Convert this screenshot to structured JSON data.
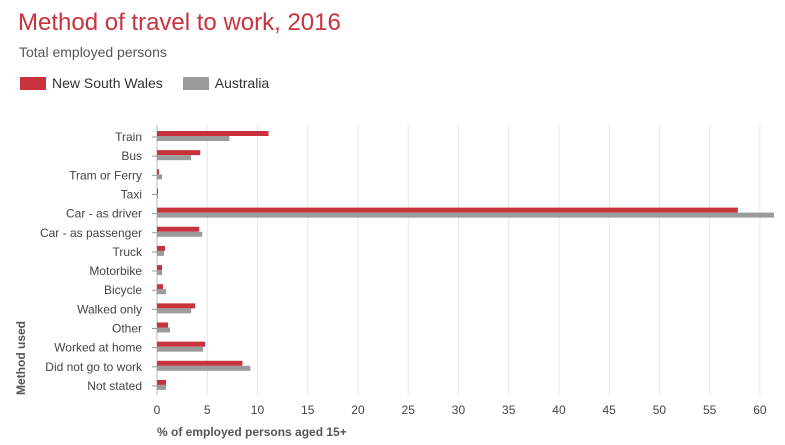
{
  "header": {
    "title": "Method of travel to work, 2016",
    "subtitle": "Total employed persons"
  },
  "legend": {
    "items": [
      {
        "label": "New South Wales",
        "color": "#c8323c"
      },
      {
        "label": "Australia",
        "color": "#9b9b9b"
      }
    ]
  },
  "chart_data": {
    "type": "bar",
    "orientation": "horizontal",
    "title": "Method of travel to work, 2016",
    "subtitle": "Total employed persons",
    "xlabel": "% of employed persons aged 15+",
    "ylabel": "Method used",
    "xlim": [
      0,
      61.5
    ],
    "xticks": [
      0,
      5,
      10,
      15,
      20,
      25,
      30,
      35,
      40,
      45,
      50,
      55,
      60
    ],
    "grid": "vertical",
    "legend_position": "top-left",
    "categories": [
      "Train",
      "Bus",
      "Tram or Ferry",
      "Taxi",
      "Car - as driver",
      "Car - as passenger",
      "Truck",
      "Motorbike",
      "Bicycle",
      "Walked only",
      "Other",
      "Worked at home",
      "Did not go to work",
      "Not stated"
    ],
    "series": [
      {
        "name": "New South Wales",
        "color": "#c8323c",
        "values": [
          11.1,
          4.3,
          0.2,
          0.1,
          57.8,
          4.2,
          0.8,
          0.5,
          0.6,
          3.8,
          1.1,
          4.8,
          8.5,
          0.9
        ]
      },
      {
        "name": "Australia",
        "color": "#9b9b9b",
        "values": [
          7.2,
          3.4,
          0.5,
          0.1,
          61.4,
          4.5,
          0.7,
          0.5,
          0.9,
          3.4,
          1.3,
          4.6,
          9.3,
          0.9
        ]
      }
    ]
  }
}
